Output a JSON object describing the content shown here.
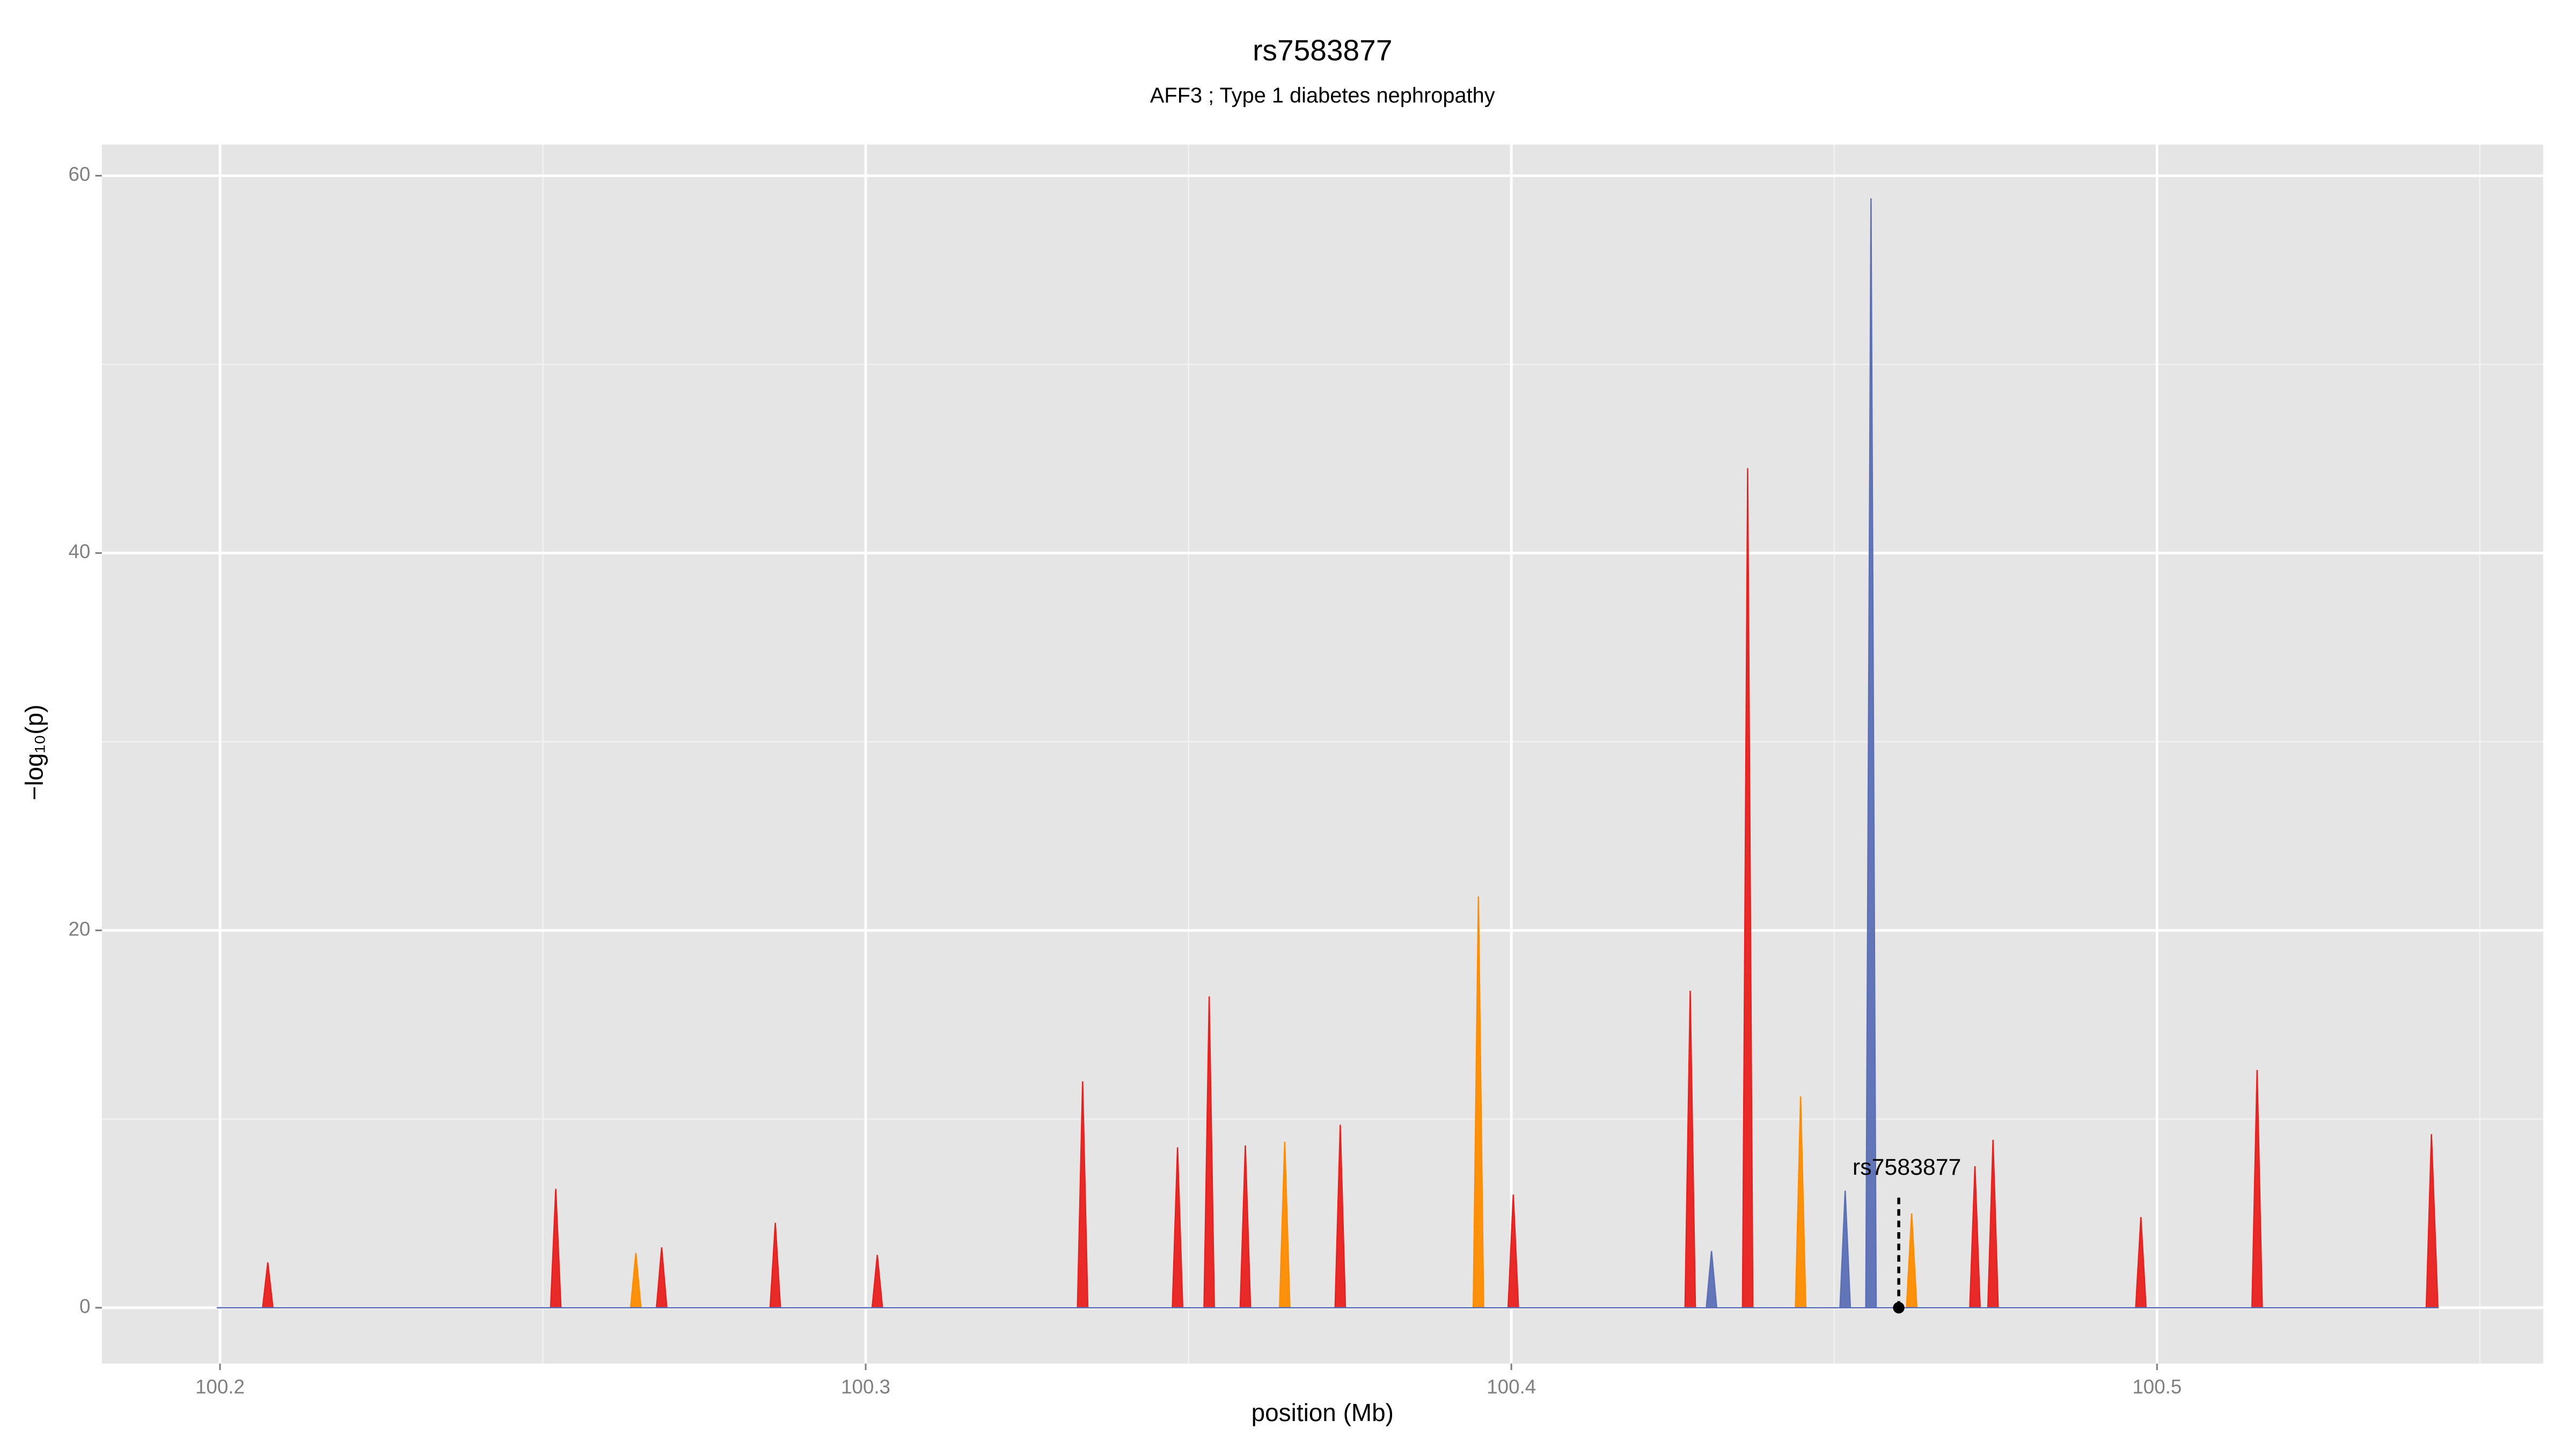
{
  "chart_data": {
    "type": "area",
    "title": "rs7583877",
    "subtitle": "AFF3 ; Type 1 diabetes nephropathy",
    "x_label": "position (Mb)",
    "y_label": "−log₁₀(p)",
    "xlim": [
      100.1817,
      100.5598
    ],
    "ylim": [
      -2.96,
      61.65
    ],
    "xticks": [
      100.2,
      100.3,
      100.4,
      100.5
    ],
    "yticks": [
      0,
      20,
      40,
      60
    ],
    "x_minor_ticks": [
      100.25,
      100.35,
      100.45,
      100.55
    ],
    "y_minor_ticks": [
      10,
      30,
      50
    ],
    "grid": true,
    "series": [
      {
        "color": "#ff8c00",
        "x": [
          100.1995,
          100.2636,
          100.2644,
          100.2652,
          100.3641,
          100.3649,
          100.3657,
          100.3941,
          100.3949,
          100.3957,
          100.444,
          100.4448,
          100.4456,
          100.4612,
          100.462,
          100.4628,
          100.5435
        ],
        "values": [
          0,
          0,
          2.9,
          0,
          0,
          8.8,
          0,
          0,
          21.8,
          0,
          0,
          11.2,
          0,
          0,
          5,
          0,
          0
        ]
      },
      {
        "color": "#e8201e",
        "x": [
          100.1995,
          100.2066,
          100.2074,
          100.2082,
          100.2512,
          100.252,
          100.2528,
          100.2676,
          100.2684,
          100.2692,
          100.2852,
          100.286,
          100.2868,
          100.301,
          100.3018,
          100.3026,
          100.3328,
          100.3336,
          100.3344,
          100.3475,
          100.3483,
          100.3491,
          100.3524,
          100.3532,
          100.354,
          100.358,
          100.3588,
          100.3596,
          100.3727,
          100.3735,
          100.3743,
          100.3995,
          100.4003,
          100.4011,
          100.4269,
          100.4277,
          100.4285,
          100.4358,
          100.4366,
          100.4374,
          100.471,
          100.4718,
          100.4726,
          100.4738,
          100.4746,
          100.4754,
          100.4967,
          100.4975,
          100.4983,
          100.5147,
          100.5155,
          100.5163,
          100.5417,
          100.5425,
          100.5435
        ],
        "values": [
          0,
          0,
          2.4,
          0,
          0,
          6.3,
          0,
          0,
          3.2,
          0,
          0,
          4.5,
          0,
          0,
          2.8,
          0,
          0,
          12,
          0,
          0,
          8.5,
          0,
          0,
          16.5,
          0,
          0,
          8.6,
          0,
          0,
          9.7,
          0,
          0,
          6,
          0,
          0,
          16.8,
          0,
          0,
          44.5,
          0,
          0,
          7.5,
          0,
          0,
          8.9,
          0,
          0,
          4.8,
          0,
          0,
          12.6,
          0,
          0,
          9.2,
          0
        ]
      },
      {
        "color": "#5a6fb5",
        "x": [
          100.1995,
          100.4302,
          100.431,
          100.4318,
          100.4509,
          100.4517,
          100.4525,
          100.4549,
          100.4557,
          100.4565,
          100.5435
        ],
        "values": [
          0,
          0,
          3,
          0,
          0,
          6.2,
          0,
          0,
          58.8,
          0,
          0
        ]
      }
    ],
    "annotation": {
      "label": "rs7583877",
      "x": 100.46,
      "y": 0,
      "label_y": 6.5
    }
  }
}
